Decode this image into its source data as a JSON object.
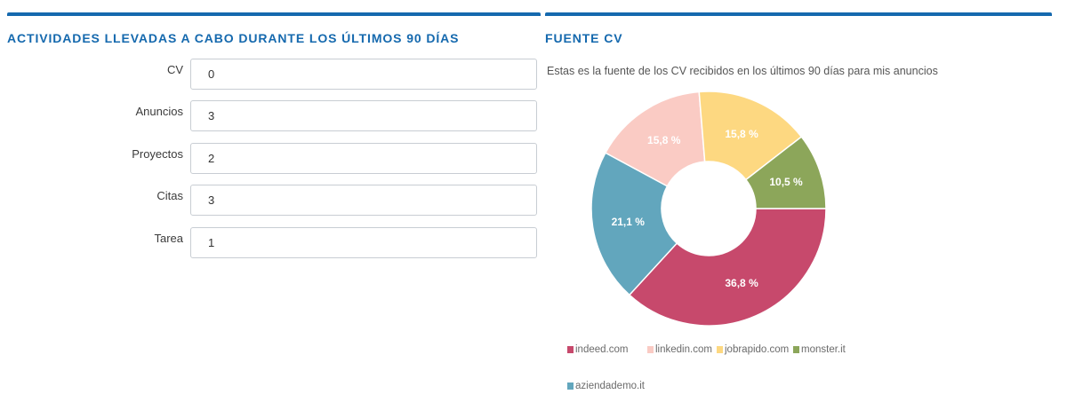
{
  "activities": {
    "title": "ACTIVIDADES LLEVADAS A CABO DURANTE LOS ÚLTIMOS 90 DÍAS",
    "fields": [
      {
        "label": "CV",
        "value": "0"
      },
      {
        "label": "Anuncios",
        "value": "3"
      },
      {
        "label": "Proyectos",
        "value": "2"
      },
      {
        "label": "Citas",
        "value": "3"
      },
      {
        "label": "Tarea",
        "value": "1"
      }
    ]
  },
  "cv_source": {
    "title": "FUENTE CV",
    "description": "Estas es la fuente de los CV recibidos en los últimos 90 días para mis anuncios"
  },
  "chart_data": {
    "type": "pie",
    "donut": true,
    "title": "",
    "legend_position": "bottom",
    "slices": [
      {
        "name": "indeed.com",
        "value": 36.8,
        "label": "36,8 %",
        "color": "#c7496c"
      },
      {
        "name": "aziendademo.it",
        "value": 21.1,
        "label": "21,1 %",
        "color": "#62a6bd"
      },
      {
        "name": "linkedin.com",
        "value": 15.8,
        "label": "15,8 %",
        "color": "#facbc4"
      },
      {
        "name": "jobrapido.com",
        "value": 15.8,
        "label": "15,8 %",
        "color": "#fdd881"
      },
      {
        "name": "monster.it",
        "value": 10.5,
        "label": "10,5 %",
        "color": "#8ca65a"
      }
    ],
    "legend": [
      "indeed.com",
      "linkedin.com",
      "jobrapido.com",
      "monster.it",
      "aziendademo.it"
    ]
  }
}
